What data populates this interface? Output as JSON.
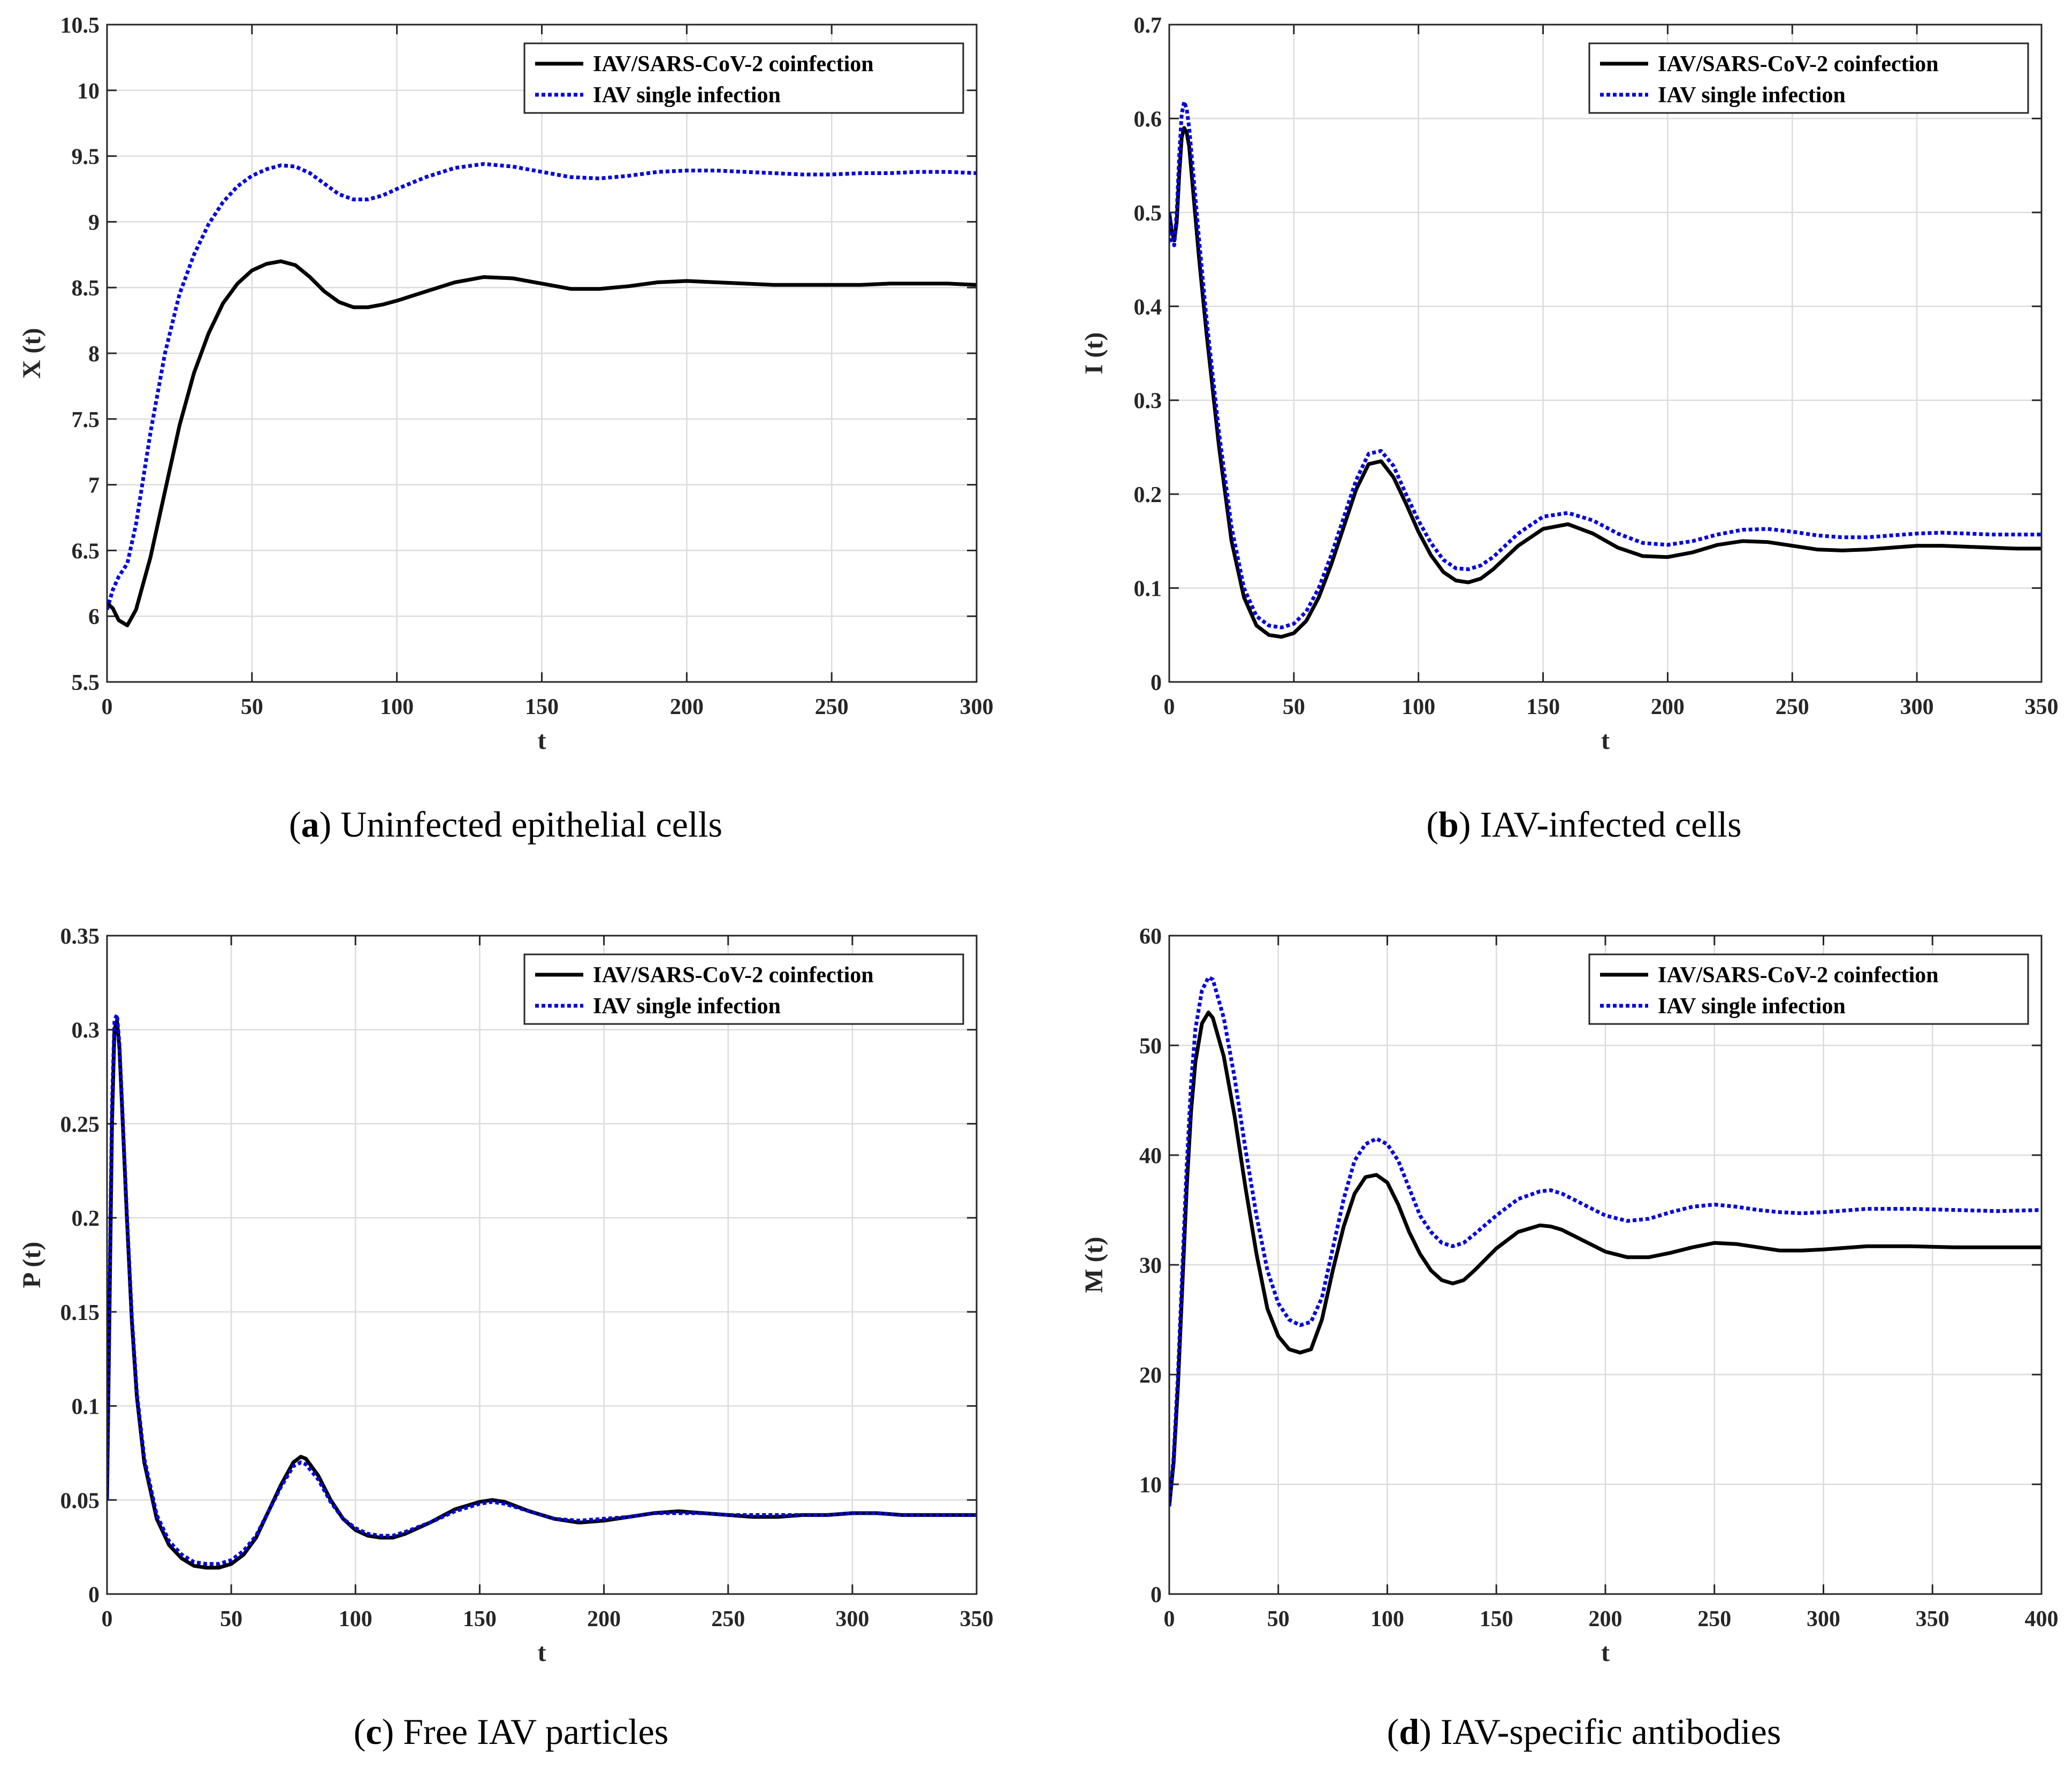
{
  "colors": {
    "coinfection": "#000000",
    "single": "#0000dd",
    "grid": "#dcdcdc",
    "axis": "#262626"
  },
  "chart_data": [
    {
      "id": "a",
      "type": "line",
      "caption_letter": "a",
      "caption_text": "Uninfected epithelial cells",
      "xlabel": "t",
      "ylabel": "X (t)",
      "xlim": [
        0,
        300
      ],
      "ylim": [
        5.5,
        10.5
      ],
      "xticks": [
        0,
        50,
        100,
        150,
        200,
        250,
        300
      ],
      "yticks": [
        5.5,
        6,
        6.5,
        7,
        7.5,
        8,
        8.5,
        9,
        9.5,
        10,
        10.5
      ],
      "ytick_labels": [
        "5.5",
        "6",
        "6.5",
        "7",
        "7.5",
        "8",
        "8.5",
        "9",
        "9.5",
        "10",
        "10.5"
      ],
      "legend": [
        "IAV/SARS-CoV-2 coinfection",
        "IAV single infection"
      ],
      "series": [
        {
          "name": "IAV/SARS-CoV-2 coinfection",
          "style": "solid",
          "x": [
            0,
            2,
            4,
            7,
            10,
            15,
            20,
            25,
            30,
            35,
            40,
            45,
            50,
            55,
            60,
            65,
            70,
            75,
            80,
            85,
            90,
            95,
            100,
            110,
            120,
            130,
            140,
            150,
            160,
            170,
            180,
            190,
            200,
            210,
            220,
            230,
            240,
            250,
            260,
            270,
            280,
            290,
            300
          ],
          "y": [
            6.1,
            6.06,
            5.97,
            5.93,
            6.05,
            6.45,
            6.95,
            7.45,
            7.85,
            8.15,
            8.38,
            8.53,
            8.63,
            8.68,
            8.7,
            8.67,
            8.58,
            8.47,
            8.39,
            8.35,
            8.35,
            8.37,
            8.4,
            8.47,
            8.54,
            8.58,
            8.57,
            8.53,
            8.49,
            8.49,
            8.51,
            8.54,
            8.55,
            8.54,
            8.53,
            8.52,
            8.52,
            8.52,
            8.52,
            8.53,
            8.53,
            8.53,
            8.52
          ]
        },
        {
          "name": "IAV single infection",
          "style": "dotted",
          "x": [
            0,
            2,
            4,
            7,
            10,
            15,
            20,
            25,
            30,
            35,
            40,
            45,
            50,
            55,
            60,
            65,
            70,
            75,
            80,
            85,
            90,
            95,
            100,
            110,
            120,
            130,
            140,
            150,
            160,
            170,
            180,
            190,
            200,
            210,
            220,
            230,
            240,
            250,
            260,
            270,
            280,
            290,
            300
          ],
          "y": [
            6.05,
            6.2,
            6.3,
            6.4,
            6.7,
            7.4,
            8.0,
            8.45,
            8.75,
            8.98,
            9.15,
            9.27,
            9.35,
            9.4,
            9.43,
            9.42,
            9.37,
            9.29,
            9.21,
            9.17,
            9.17,
            9.2,
            9.25,
            9.34,
            9.41,
            9.44,
            9.42,
            9.38,
            9.34,
            9.33,
            9.35,
            9.38,
            9.39,
            9.39,
            9.38,
            9.37,
            9.36,
            9.36,
            9.37,
            9.37,
            9.38,
            9.38,
            9.37
          ]
        }
      ]
    },
    {
      "id": "b",
      "type": "line",
      "caption_letter": "b",
      "caption_text": "IAV-infected cells",
      "xlabel": "t",
      "ylabel": "I (t)",
      "xlim": [
        0,
        350
      ],
      "ylim": [
        0,
        0.7
      ],
      "xticks": [
        0,
        50,
        100,
        150,
        200,
        250,
        300,
        350
      ],
      "yticks": [
        0,
        0.1,
        0.2,
        0.3,
        0.4,
        0.5,
        0.6,
        0.7
      ],
      "ytick_labels": [
        "0",
        "0.1",
        "0.2",
        "0.3",
        "0.4",
        "0.5",
        "0.6",
        "0.7"
      ],
      "legend": [
        "IAV/SARS-CoV-2 coinfection",
        "IAV single infection"
      ],
      "series": [
        {
          "name": "IAV/SARS-CoV-2 coinfection",
          "style": "solid",
          "x": [
            0,
            1,
            2,
            3,
            4,
            5,
            6,
            7,
            8,
            10,
            12,
            15,
            20,
            25,
            30,
            35,
            40,
            45,
            50,
            55,
            60,
            65,
            70,
            75,
            80,
            85,
            90,
            95,
            100,
            105,
            110,
            115,
            120,
            125,
            130,
            140,
            150,
            160,
            170,
            180,
            190,
            200,
            210,
            220,
            230,
            240,
            250,
            260,
            270,
            280,
            290,
            300,
            310,
            320,
            330,
            340,
            350
          ],
          "y": [
            0.5,
            0.48,
            0.47,
            0.49,
            0.54,
            0.58,
            0.59,
            0.585,
            0.57,
            0.51,
            0.45,
            0.37,
            0.25,
            0.15,
            0.09,
            0.06,
            0.05,
            0.048,
            0.052,
            0.065,
            0.09,
            0.125,
            0.165,
            0.205,
            0.232,
            0.235,
            0.218,
            0.19,
            0.16,
            0.135,
            0.117,
            0.108,
            0.106,
            0.11,
            0.12,
            0.145,
            0.163,
            0.168,
            0.158,
            0.143,
            0.134,
            0.133,
            0.138,
            0.146,
            0.15,
            0.149,
            0.145,
            0.141,
            0.14,
            0.141,
            0.143,
            0.145,
            0.145,
            0.144,
            0.143,
            0.142,
            0.142
          ]
        },
        {
          "name": "IAV single infection",
          "style": "dotted",
          "x": [
            0,
            1,
            2,
            3,
            4,
            5,
            6,
            7,
            8,
            10,
            12,
            15,
            20,
            25,
            30,
            35,
            40,
            45,
            50,
            55,
            60,
            65,
            70,
            75,
            80,
            85,
            90,
            95,
            100,
            105,
            110,
            115,
            120,
            125,
            130,
            140,
            150,
            160,
            170,
            180,
            190,
            200,
            210,
            220,
            230,
            240,
            250,
            260,
            270,
            280,
            290,
            300,
            310,
            320,
            330,
            340,
            350
          ],
          "y": [
            0.5,
            0.47,
            0.465,
            0.5,
            0.56,
            0.605,
            0.618,
            0.61,
            0.59,
            0.53,
            0.47,
            0.385,
            0.265,
            0.165,
            0.1,
            0.07,
            0.06,
            0.058,
            0.062,
            0.075,
            0.1,
            0.135,
            0.175,
            0.215,
            0.243,
            0.246,
            0.23,
            0.2,
            0.172,
            0.148,
            0.13,
            0.121,
            0.12,
            0.124,
            0.133,
            0.158,
            0.176,
            0.18,
            0.172,
            0.158,
            0.148,
            0.146,
            0.15,
            0.157,
            0.162,
            0.163,
            0.16,
            0.156,
            0.154,
            0.154,
            0.156,
            0.158,
            0.159,
            0.158,
            0.157,
            0.157,
            0.157
          ]
        }
      ]
    },
    {
      "id": "c",
      "type": "line",
      "caption_letter": "c",
      "caption_text": "Free IAV particles",
      "xlabel": "t",
      "ylabel": "P (t)",
      "xlim": [
        0,
        350
      ],
      "ylim": [
        0,
        0.35
      ],
      "xticks": [
        0,
        50,
        100,
        150,
        200,
        250,
        300,
        350
      ],
      "yticks": [
        0,
        0.05,
        0.1,
        0.15,
        0.2,
        0.25,
        0.3,
        0.35
      ],
      "ytick_labels": [
        "0",
        "0.05",
        "0.1",
        "0.15",
        "0.2",
        "0.25",
        "0.3",
        "0.35"
      ],
      "legend": [
        "IAV/SARS-CoV-2 coinfection",
        "IAV single infection"
      ],
      "series": [
        {
          "name": "IAV/SARS-CoV-2 coinfection",
          "style": "solid",
          "x": [
            0,
            1,
            2,
            3,
            4,
            5,
            6,
            8,
            10,
            12,
            15,
            20,
            25,
            30,
            35,
            40,
            45,
            50,
            55,
            60,
            65,
            70,
            75,
            78,
            80,
            85,
            90,
            95,
            100,
            105,
            110,
            115,
            120,
            130,
            140,
            150,
            155,
            160,
            170,
            180,
            190,
            200,
            210,
            220,
            230,
            240,
            250,
            260,
            270,
            280,
            290,
            300,
            310,
            320,
            330,
            340,
            350
          ],
          "y": [
            0.05,
            0.15,
            0.25,
            0.3,
            0.305,
            0.29,
            0.26,
            0.2,
            0.145,
            0.105,
            0.07,
            0.04,
            0.026,
            0.019,
            0.015,
            0.014,
            0.014,
            0.016,
            0.021,
            0.03,
            0.044,
            0.058,
            0.07,
            0.073,
            0.072,
            0.063,
            0.05,
            0.04,
            0.034,
            0.031,
            0.03,
            0.03,
            0.032,
            0.038,
            0.045,
            0.049,
            0.05,
            0.049,
            0.044,
            0.04,
            0.038,
            0.039,
            0.041,
            0.043,
            0.044,
            0.043,
            0.042,
            0.041,
            0.041,
            0.042,
            0.042,
            0.043,
            0.043,
            0.042,
            0.042,
            0.042,
            0.042
          ]
        },
        {
          "name": "IAV single infection",
          "style": "dotted",
          "x": [
            0,
            1,
            2,
            3,
            4,
            5,
            6,
            8,
            10,
            12,
            15,
            20,
            25,
            30,
            35,
            40,
            45,
            50,
            55,
            60,
            65,
            70,
            75,
            78,
            80,
            85,
            90,
            95,
            100,
            105,
            110,
            115,
            120,
            130,
            140,
            150,
            155,
            160,
            170,
            180,
            190,
            200,
            210,
            220,
            230,
            240,
            250,
            260,
            270,
            280,
            290,
            300,
            310,
            320,
            330,
            340,
            350
          ],
          "y": [
            0.05,
            0.16,
            0.26,
            0.305,
            0.308,
            0.292,
            0.262,
            0.202,
            0.147,
            0.107,
            0.072,
            0.042,
            0.028,
            0.021,
            0.017,
            0.016,
            0.016,
            0.018,
            0.023,
            0.031,
            0.044,
            0.057,
            0.068,
            0.07,
            0.069,
            0.061,
            0.049,
            0.04,
            0.035,
            0.032,
            0.031,
            0.031,
            0.033,
            0.038,
            0.044,
            0.048,
            0.049,
            0.048,
            0.044,
            0.04,
            0.039,
            0.04,
            0.041,
            0.043,
            0.043,
            0.043,
            0.042,
            0.042,
            0.042,
            0.042,
            0.042,
            0.043,
            0.043,
            0.042,
            0.042,
            0.042,
            0.042
          ]
        }
      ]
    },
    {
      "id": "d",
      "type": "line",
      "caption_letter": "d",
      "caption_text": "IAV-specific antibodies",
      "xlabel": "t",
      "ylabel": "M (t)",
      "xlim": [
        0,
        400
      ],
      "ylim": [
        0,
        60
      ],
      "xticks": [
        0,
        50,
        100,
        150,
        200,
        250,
        300,
        350,
        400
      ],
      "yticks": [
        0,
        10,
        20,
        30,
        40,
        50,
        60
      ],
      "ytick_labels": [
        "0",
        "10",
        "20",
        "30",
        "40",
        "50",
        "60"
      ],
      "legend": [
        "IAV/SARS-CoV-2 coinfection",
        "IAV single infection"
      ],
      "series": [
        {
          "name": "IAV/SARS-CoV-2 coinfection",
          "style": "solid",
          "x": [
            0,
            2,
            4,
            6,
            8,
            10,
            12,
            15,
            18,
            20,
            25,
            30,
            35,
            40,
            45,
            50,
            55,
            60,
            65,
            70,
            75,
            80,
            85,
            90,
            95,
            100,
            105,
            110,
            115,
            120,
            125,
            130,
            135,
            140,
            150,
            160,
            170,
            175,
            180,
            190,
            200,
            210,
            220,
            230,
            240,
            250,
            260,
            270,
            280,
            290,
            300,
            320,
            340,
            360,
            380,
            400
          ],
          "y": [
            8,
            12,
            19,
            28,
            37,
            44,
            48.5,
            52,
            53,
            52.5,
            49,
            43.5,
            37,
            31,
            26,
            23.5,
            22.3,
            22,
            22.3,
            25,
            29.5,
            33.5,
            36.5,
            38,
            38.2,
            37.5,
            35.5,
            33,
            31,
            29.5,
            28.6,
            28.3,
            28.6,
            29.5,
            31.5,
            33,
            33.6,
            33.5,
            33.2,
            32.2,
            31.2,
            30.7,
            30.7,
            31.1,
            31.6,
            32,
            31.9,
            31.6,
            31.3,
            31.3,
            31.4,
            31.7,
            31.7,
            31.6,
            31.6,
            31.6
          ]
        },
        {
          "name": "IAV single infection",
          "style": "dotted",
          "x": [
            0,
            2,
            4,
            6,
            8,
            10,
            12,
            15,
            18,
            20,
            25,
            30,
            35,
            40,
            45,
            50,
            55,
            60,
            65,
            70,
            75,
            80,
            85,
            90,
            95,
            100,
            105,
            110,
            115,
            120,
            125,
            130,
            135,
            140,
            150,
            160,
            170,
            175,
            180,
            190,
            200,
            210,
            220,
            230,
            240,
            250,
            260,
            270,
            280,
            290,
            300,
            320,
            340,
            360,
            380,
            400
          ],
          "y": [
            8,
            12.5,
            20,
            29.5,
            39,
            46.5,
            51.5,
            55,
            56.2,
            56,
            52.5,
            47,
            40.5,
            34.5,
            29.5,
            26.5,
            25,
            24.5,
            24.8,
            27,
            31.5,
            36,
            39.5,
            41,
            41.5,
            41,
            39.5,
            37,
            34.5,
            33,
            32,
            31.7,
            32,
            32.8,
            34.5,
            36,
            36.7,
            36.8,
            36.5,
            35.5,
            34.5,
            34,
            34.2,
            34.8,
            35.3,
            35.5,
            35.3,
            35,
            34.8,
            34.7,
            34.8,
            35.1,
            35.1,
            35,
            34.9,
            35
          ]
        }
      ]
    }
  ]
}
